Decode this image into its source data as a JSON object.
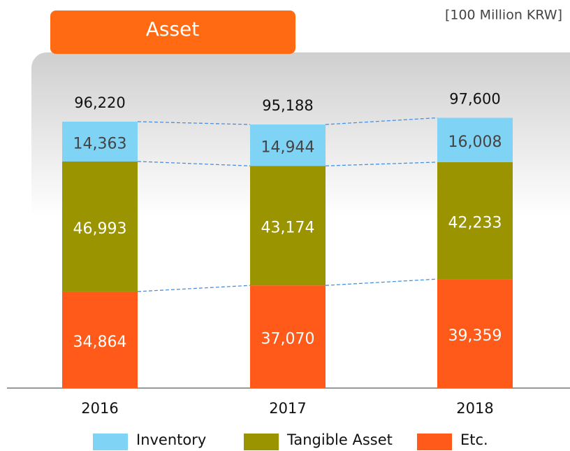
{
  "chart_data": {
    "type": "stacked_bar",
    "title": "Asset",
    "subtitle": "[100 Million KRW]",
    "categories": [
      "2016",
      "2017",
      "2018"
    ],
    "ylim": [
      0,
      100000
    ],
    "series": [
      {
        "name": "Etc.",
        "color": "#ff5a1a",
        "values": [
          34864,
          37070,
          39359
        ],
        "value_labels": [
          "34,864",
          "37,070",
          "39,359"
        ]
      },
      {
        "name": "Tangible Asset",
        "color": "#9a9400",
        "values": [
          46993,
          43174,
          42233
        ],
        "value_labels": [
          "46,993",
          "43,174",
          "42,233"
        ]
      },
      {
        "name": "Inventory",
        "color": "#7fd3f5",
        "values": [
          14363,
          14944,
          16008
        ],
        "value_labels": [
          "14,363",
          "14,944",
          "16,008"
        ]
      }
    ],
    "totals": [
      96220,
      95188,
      97600
    ],
    "total_labels": [
      "96,220",
      "95,188",
      "97,600"
    ]
  }
}
